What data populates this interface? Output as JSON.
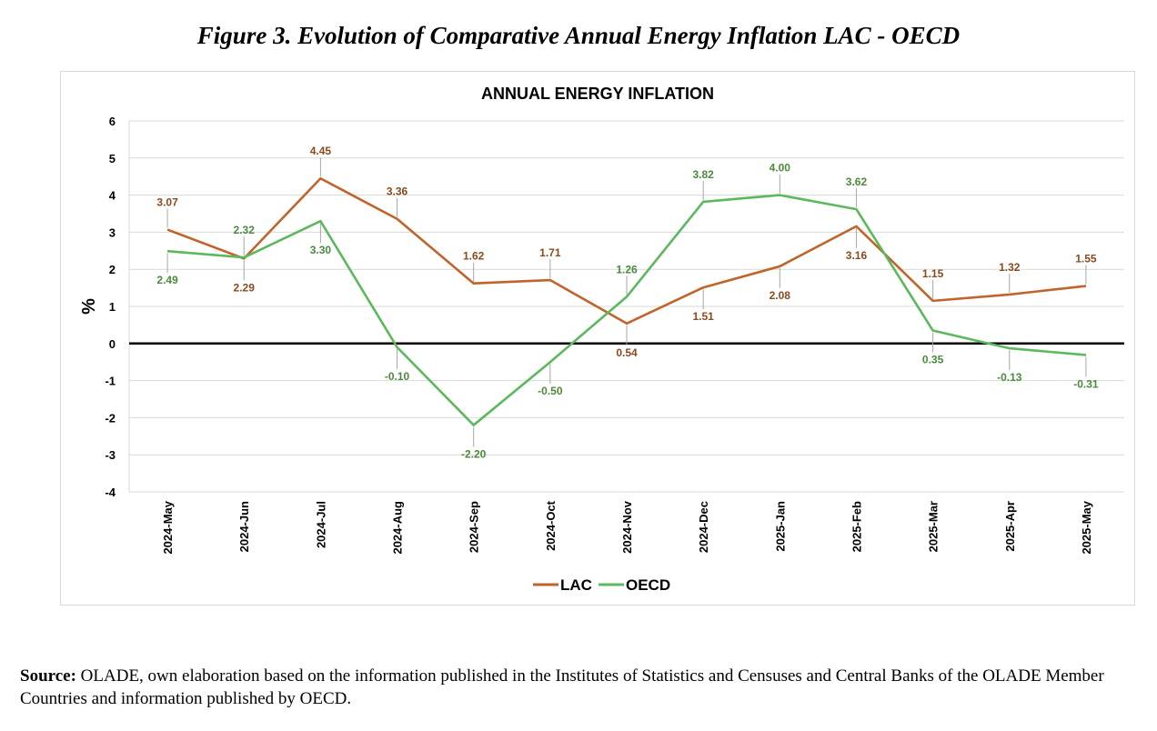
{
  "figure_title": "Figure 3. Evolution of Comparative Annual Energy Inflation LAC - OECD",
  "source": {
    "label": "Source:",
    "text": " OLADE, own elaboration based on the information published in the Institutes of Statistics and Censuses and Central Banks of the OLADE Member Countries and information published by OECD."
  },
  "chart_data": {
    "type": "line",
    "title": "ANNUAL ENERGY INFLATION",
    "xlabel": "",
    "ylabel": "%",
    "ylim": [
      -4,
      6
    ],
    "yticks": [
      -4,
      -3,
      -2,
      -1,
      0,
      1,
      2,
      3,
      4,
      5,
      6
    ],
    "grid": true,
    "legend_position": "bottom",
    "categories": [
      "2024-May",
      "2024-Jun",
      "2024-Jul",
      "2024-Aug",
      "2024-Sep",
      "2024-Oct",
      "2024-Nov",
      "2024-Dec",
      "2025-Jan",
      "2025-Feb",
      "2025-Mar",
      "2025-Apr",
      "2025-May"
    ],
    "series": [
      {
        "name": "LAC",
        "color": "#c0642a",
        "values": [
          3.07,
          2.29,
          4.45,
          3.36,
          1.62,
          1.71,
          0.54,
          1.51,
          2.08,
          3.16,
          1.15,
          1.32,
          1.55
        ],
        "labels": [
          "3.07",
          "2.29",
          "4.45",
          "3.36",
          "1.62",
          "1.71",
          "0.54",
          "1.51",
          "2.08",
          "3.16",
          "1.15",
          "1.32",
          "1.55"
        ],
        "label_side": [
          "above",
          "below",
          "above",
          "above",
          "above",
          "above",
          "below",
          "below",
          "below",
          "below",
          "above",
          "above",
          "above"
        ]
      },
      {
        "name": "OECD",
        "color": "#5cb85c",
        "values": [
          2.49,
          2.32,
          3.3,
          -0.1,
          -2.2,
          -0.5,
          1.26,
          3.82,
          4.0,
          3.62,
          0.35,
          -0.13,
          -0.31
        ],
        "labels": [
          "2.49",
          "2.32",
          "3.30",
          "-0.10",
          "-2.20",
          "-0.50",
          "1.26",
          "3.82",
          "4.00",
          "3.62",
          "0.35",
          "-0.13",
          "-0.31"
        ],
        "label_side": [
          "below",
          "above",
          "below",
          "below",
          "below",
          "below",
          "above",
          "above",
          "above",
          "above",
          "below",
          "below",
          "below"
        ]
      }
    ]
  }
}
